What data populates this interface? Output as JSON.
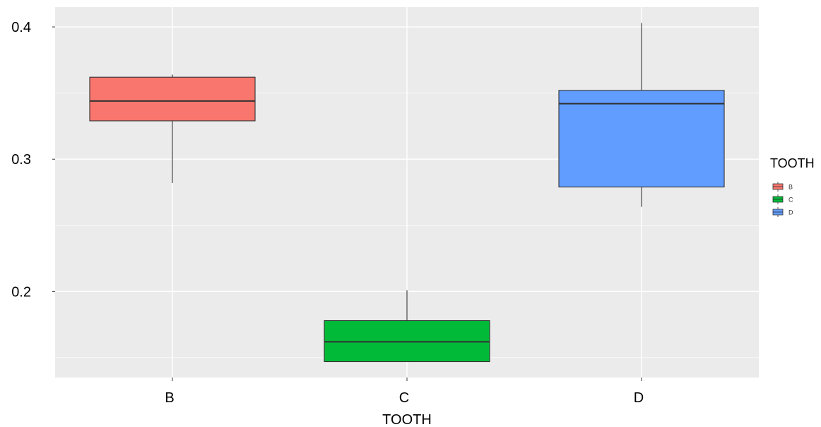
{
  "chart_data": {
    "type": "boxplot",
    "title": "",
    "xlabel": "TOOTH",
    "ylabel": "",
    "ylim": [
      0.135,
      0.415
    ],
    "y_ticks": [
      {
        "value": 0.2,
        "label": "0.2"
      },
      {
        "value": 0.3,
        "label": "0.3"
      },
      {
        "value": 0.4,
        "label": "0.4"
      }
    ],
    "y_minor_grid": [
      0.15,
      0.25,
      0.35
    ],
    "grid": true,
    "categories": [
      "B",
      "C",
      "D"
    ],
    "boxes": [
      {
        "category": "B",
        "whisker_low": 0.282,
        "q1": 0.329,
        "median": 0.344,
        "q3": 0.362,
        "whisker_high": 0.364,
        "color": "#F8766D"
      },
      {
        "category": "C",
        "whisker_low": 0.147,
        "q1": 0.147,
        "median": 0.162,
        "q3": 0.178,
        "whisker_high": 0.201,
        "color": "#00BA38"
      },
      {
        "category": "D",
        "whisker_low": 0.264,
        "q1": 0.279,
        "median": 0.342,
        "q3": 0.352,
        "whisker_high": 0.403,
        "color": "#619CFF"
      }
    ],
    "legend": {
      "title": "TOOTH",
      "position": "right",
      "items": [
        {
          "label": "B",
          "color": "#F8766D"
        },
        {
          "label": "C",
          "color": "#00BA38"
        },
        {
          "label": "D",
          "color": "#619CFF"
        }
      ]
    },
    "panel_background": "#EBEBEB",
    "grid_color": "#FFFFFF"
  }
}
